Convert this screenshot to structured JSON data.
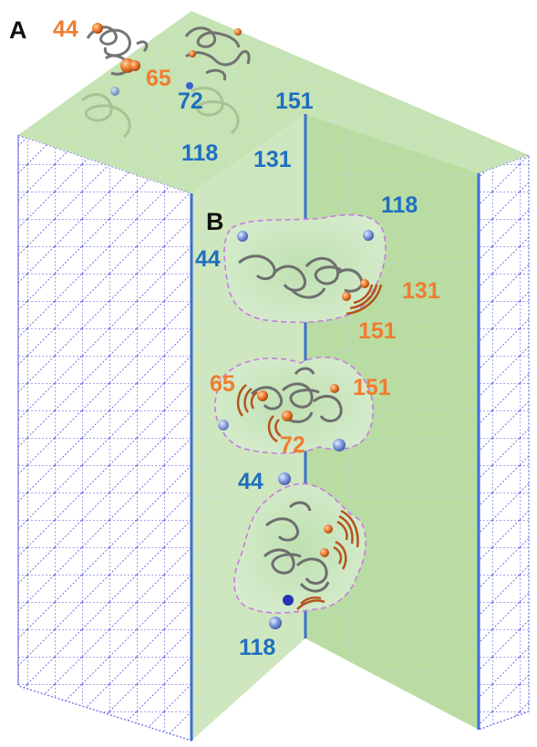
{
  "figure": {
    "panel_a": {
      "label": "A",
      "labels_orange": [
        "44",
        "65"
      ],
      "labels_blue": [
        "72",
        "151",
        "118",
        "131"
      ]
    },
    "panel_b": {
      "label": "B",
      "state1": {
        "labels_blue": [
          "118",
          "44"
        ],
        "labels_orange": [
          "131",
          "151"
        ]
      },
      "state2": {
        "labels_orange": [
          "65",
          "151",
          "72"
        ]
      },
      "state3": {
        "labels_blue": [
          "44",
          "118"
        ]
      }
    }
  },
  "colors": {
    "grid_blue": "#6f6fe8",
    "edge_blue": "#3c6fd0",
    "face_green": "#a8d48e",
    "label_blue": "#1f6fbf",
    "label_orange": "#f07c32",
    "blob_outline": "#c77be3",
    "protein_gray": "#6e6e6e",
    "sphere_orange": "#e8731f",
    "sphere_blue": "#6a87d6"
  },
  "icons": [
    "protein-cartoon",
    "orange-residue-sphere",
    "blue-residue-sphere",
    "motion-arc"
  ]
}
